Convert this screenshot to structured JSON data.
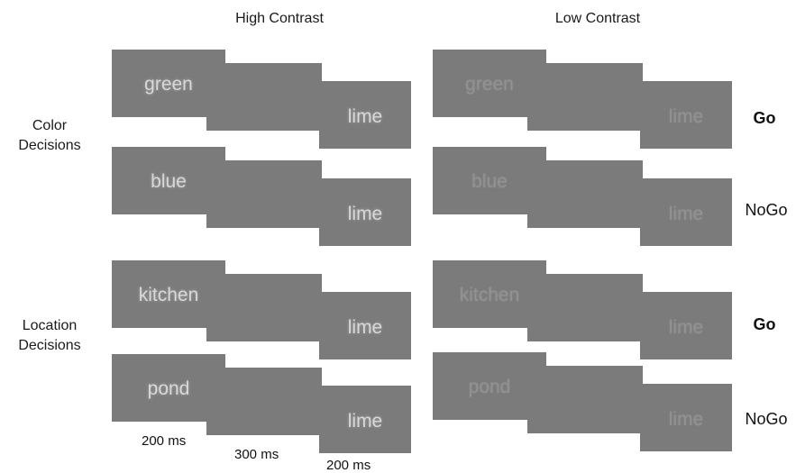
{
  "columns": {
    "high": "High Contrast",
    "low": "Low Contrast"
  },
  "row_labels": {
    "color": [
      "Color",
      "Decisions"
    ],
    "location": [
      "Location",
      "Decisions"
    ]
  },
  "trials": {
    "color_go": {
      "word1": "green",
      "word2": "lime",
      "response": "Go"
    },
    "color_nogo": {
      "word1": "blue",
      "word2": "lime",
      "response": "NoGo"
    },
    "location_go": {
      "word1": "kitchen",
      "word2": "lime",
      "response": "Go"
    },
    "location_nogo": {
      "word1": "pond",
      "word2": "lime",
      "response": "NoGo"
    }
  },
  "timings": [
    "200 ms",
    "300 ms",
    "200 ms"
  ],
  "colors": {
    "frame": "#7b7b7b",
    "high_text": "#d8d8d8",
    "low_text": "#929292"
  }
}
